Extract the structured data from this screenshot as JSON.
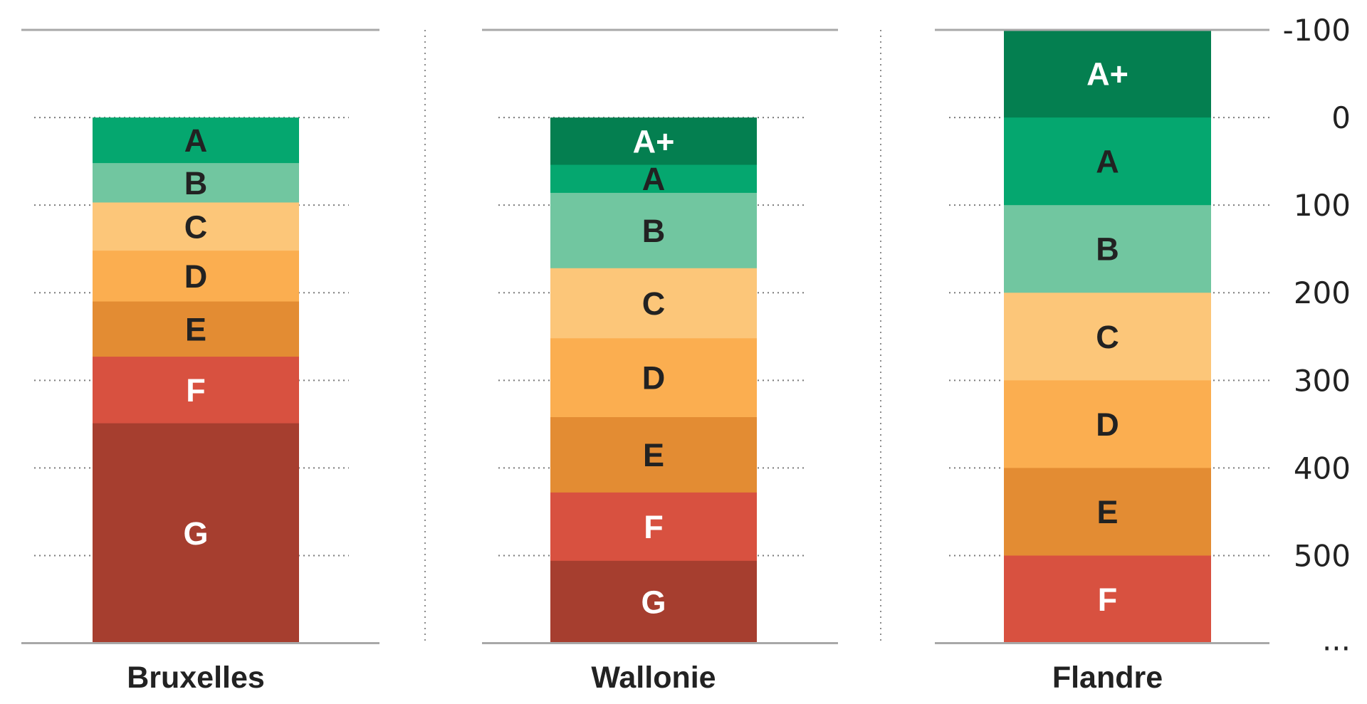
{
  "chart_data": {
    "type": "bar",
    "subtype": "stacked-energy-label-scale",
    "ylabel": "",
    "ylim": [
      -100,
      600
    ],
    "y_inverted": true,
    "y_ticks": [
      -100,
      0,
      100,
      200,
      300,
      400,
      500
    ],
    "y_tick_labels": [
      "-100",
      "0",
      "100",
      "200",
      "300",
      "400",
      "500"
    ],
    "y_overflow_label": "...",
    "grid": true,
    "colors": {
      "A+": "#047f50",
      "A": "#05a76f",
      "B": "#71c6a0",
      "C": "#fcc679",
      "D": "#fbae50",
      "E": "#e38c33",
      "F": "#d85140",
      "G": "#a63e2f"
    },
    "label_colors": {
      "A+": "#ffffff",
      "A": "#222222",
      "B": "#222222",
      "C": "#222222",
      "D": "#222222",
      "E": "#222222",
      "F": "#ffffff",
      "G": "#ffffff"
    },
    "series": [
      {
        "name": "Bruxelles",
        "bands": [
          {
            "label": "A",
            "from": 0,
            "to": 52
          },
          {
            "label": "B",
            "from": 52,
            "to": 97
          },
          {
            "label": "C",
            "from": 97,
            "to": 152
          },
          {
            "label": "D",
            "from": 152,
            "to": 210
          },
          {
            "label": "E",
            "from": 210,
            "to": 273
          },
          {
            "label": "F",
            "from": 273,
            "to": 349
          },
          {
            "label": "G",
            "from": 349,
            "to": 600
          }
        ]
      },
      {
        "name": "Wallonie",
        "bands": [
          {
            "label": "A+",
            "from": 0,
            "to": 54
          },
          {
            "label": "A",
            "from": 54,
            "to": 86
          },
          {
            "label": "B",
            "from": 86,
            "to": 172
          },
          {
            "label": "C",
            "from": 172,
            "to": 252
          },
          {
            "label": "D",
            "from": 252,
            "to": 342
          },
          {
            "label": "E",
            "from": 342,
            "to": 428
          },
          {
            "label": "F",
            "from": 428,
            "to": 506
          },
          {
            "label": "G",
            "from": 506,
            "to": 600
          }
        ]
      },
      {
        "name": "Flandre",
        "bands": [
          {
            "label": "A+",
            "from": -100,
            "to": 0
          },
          {
            "label": "A",
            "from": 0,
            "to": 100
          },
          {
            "label": "B",
            "from": 100,
            "to": 200
          },
          {
            "label": "C",
            "from": 200,
            "to": 300
          },
          {
            "label": "D",
            "from": 300,
            "to": 400
          },
          {
            "label": "E",
            "from": 400,
            "to": 500
          },
          {
            "label": "F",
            "from": 500,
            "to": 600
          }
        ]
      }
    ]
  }
}
